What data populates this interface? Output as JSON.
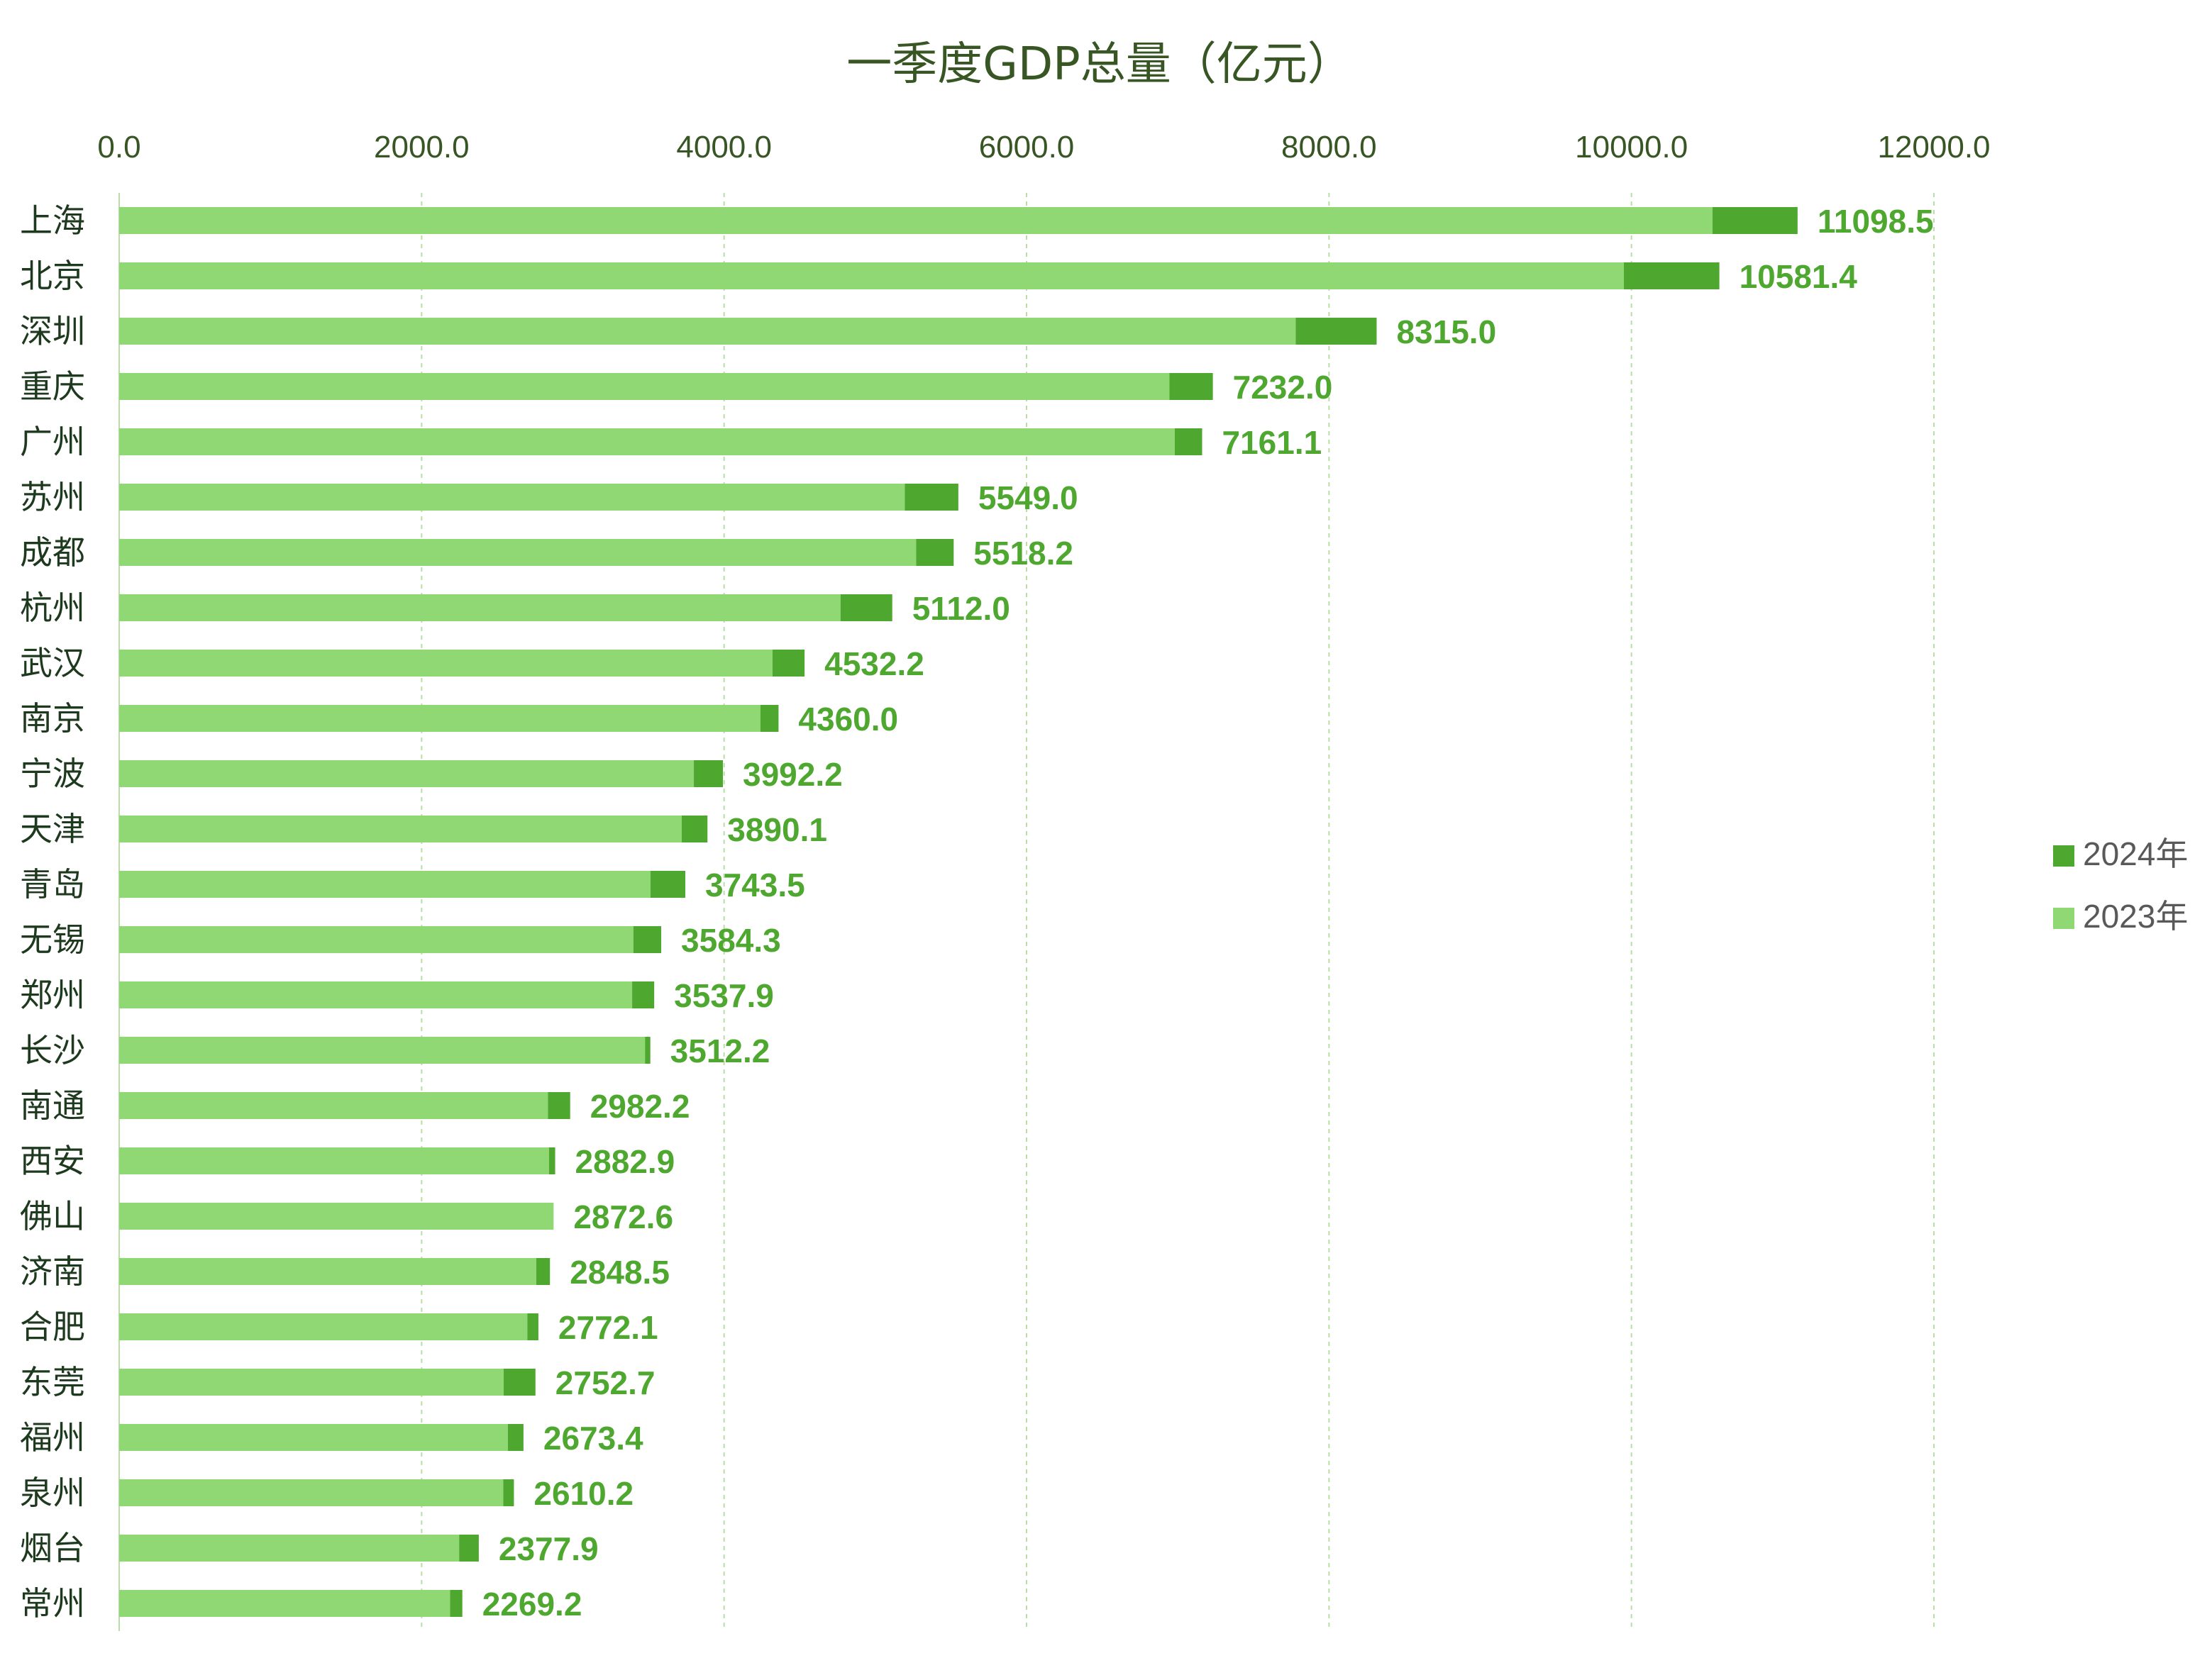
{
  "chart_data": {
    "type": "bar",
    "orientation": "horizontal",
    "stacked": true,
    "title": "一季度GDP总量（亿元）",
    "xlim": [
      0,
      12000
    ],
    "x_ticks": [
      "0.0",
      "2000.0",
      "4000.0",
      "6000.0",
      "8000.0",
      "10000.0",
      "12000.0"
    ],
    "x_tick_values": [
      0,
      2000,
      4000,
      6000,
      8000,
      10000,
      12000
    ],
    "categories": [
      "上海",
      "北京",
      "深圳",
      "重庆",
      "广州",
      "苏州",
      "成都",
      "杭州",
      "武汉",
      "南京",
      "宁波",
      "天津",
      "青岛",
      "无锡",
      "郑州",
      "长沙",
      "南通",
      "西安",
      "佛山",
      "济南",
      "合肥",
      "东莞",
      "福州",
      "泉州",
      "烟台",
      "常州"
    ],
    "series": [
      {
        "name": "2023年",
        "color": "#8fd873",
        "values": [
          10536,
          9950,
          7780,
          6945,
          6980,
          5195,
          5270,
          4770,
          4320,
          4240,
          3800,
          3720,
          3513,
          3400,
          3392,
          3477,
          2835,
          2842,
          2872.6,
          2758,
          2699,
          2542,
          2570,
          2540,
          2248,
          2188
        ]
      },
      {
        "name": "2024年",
        "color": "#4ea72e",
        "values": [
          562.5,
          631.4,
          535,
          287,
          181.1,
          354,
          248.2,
          342,
          212.2,
          120,
          192.2,
          170.1,
          230.5,
          184.3,
          145.9,
          35.2,
          147.2,
          40.9,
          0,
          90.5,
          73.1,
          210.7,
          103.4,
          70.2,
          129.9,
          81.2
        ]
      }
    ],
    "totals": [
      "11098.5",
      "10581.4",
      "8315.0",
      "7232.0",
      "7161.1",
      "5549.0",
      "5518.2",
      "5112.0",
      "4532.2",
      "4360.0",
      "3992.2",
      "3890.1",
      "3743.5",
      "3584.3",
      "3537.9",
      "3512.2",
      "2982.2",
      "2882.9",
      "2872.6",
      "2848.5",
      "2772.1",
      "2752.7",
      "2673.4",
      "2610.2",
      "2377.9",
      "2269.2"
    ],
    "legend": [
      "2024年",
      "2023年"
    ],
    "legend_position": "right",
    "grid": true
  }
}
